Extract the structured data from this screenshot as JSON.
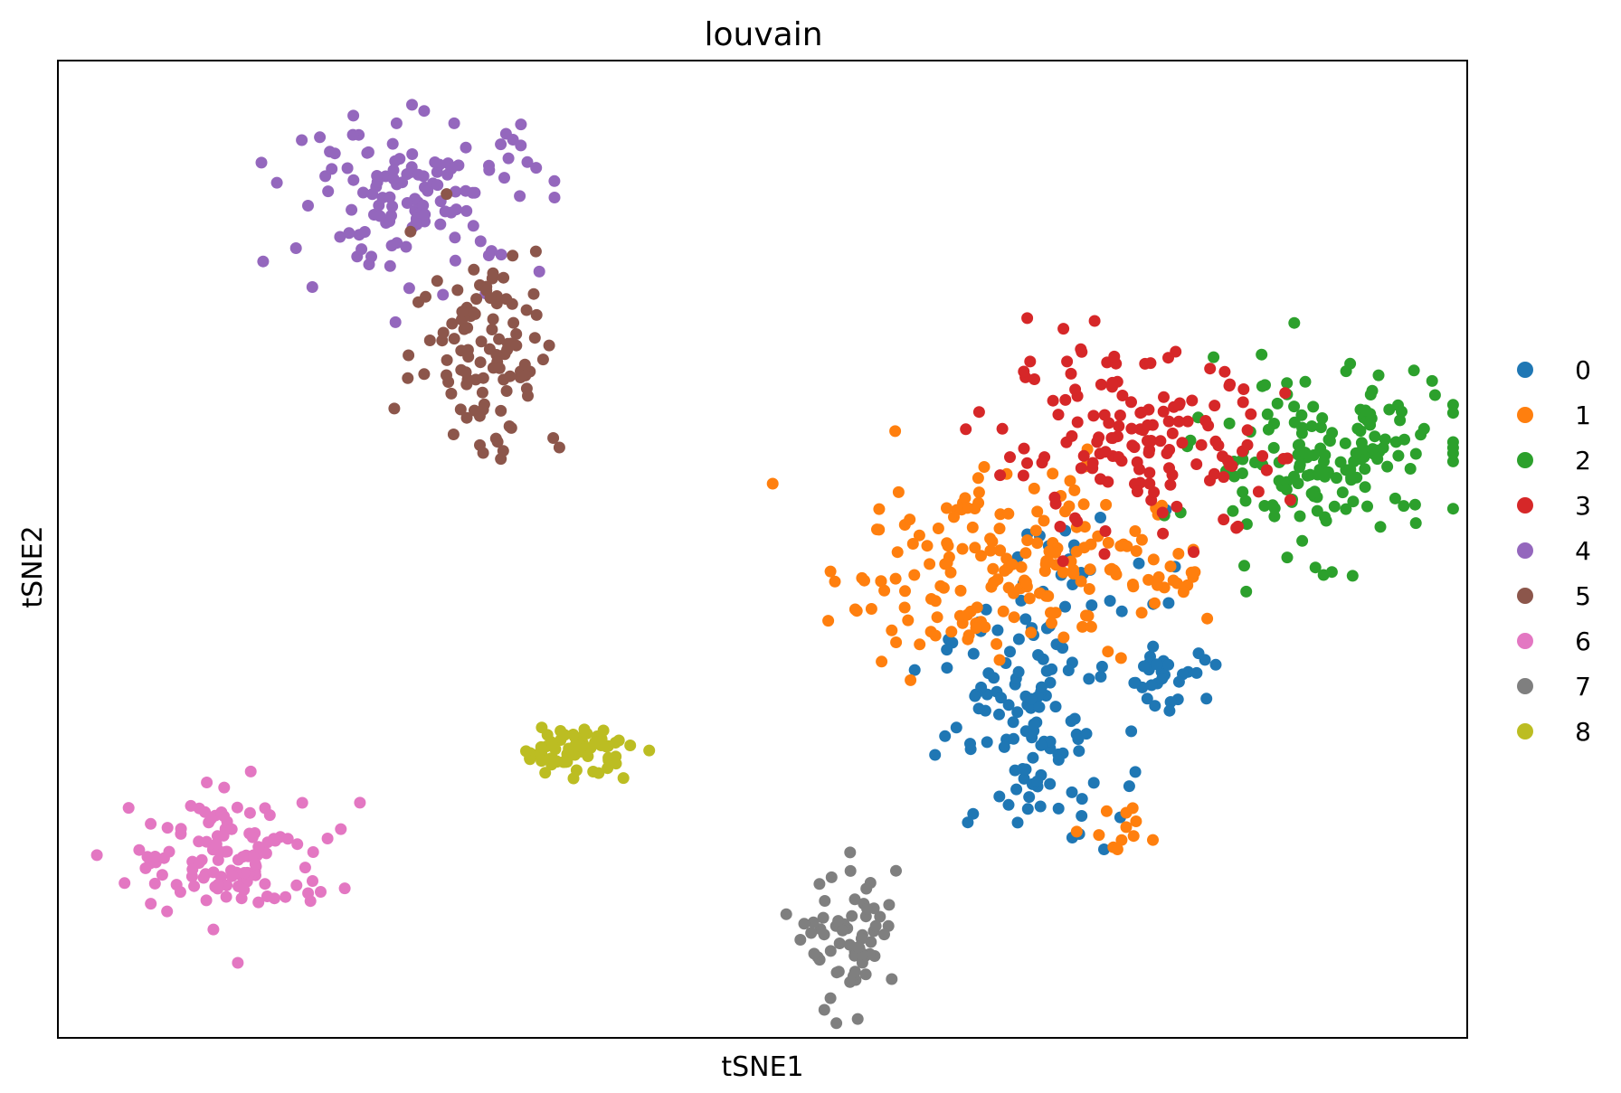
{
  "chart_data": {
    "type": "scatter",
    "title": "louvain",
    "xlabel": "tSNE1",
    "ylabel": "tSNE2",
    "xlim": [
      0,
      100
    ],
    "ylim": [
      0,
      100
    ],
    "grid": false,
    "legend": "right",
    "series": [
      {
        "name": "0",
        "color": "#1f77b4",
        "clusters": [
          {
            "cx": 69.0,
            "cy": 32.0,
            "sx": 3.2,
            "sy": 6.0,
            "n": 120
          },
          {
            "cx": 79.2,
            "cy": 37.2,
            "sx": 1.6,
            "sy": 1.8,
            "n": 30
          },
          {
            "cx": 73.0,
            "cy": 48.0,
            "sx": 4.0,
            "sy": 3.0,
            "n": 22
          }
        ]
      },
      {
        "name": "1",
        "color": "#ff7f0e",
        "clusters": [
          {
            "cx": 66.5,
            "cy": 48.5,
            "sx": 5.8,
            "sy": 5.0,
            "n": 175
          },
          {
            "cx": 77.5,
            "cy": 48.0,
            "sx": 3.0,
            "sy": 2.0,
            "n": 20
          },
          {
            "cx": 76.0,
            "cy": 21.0,
            "sx": 1.5,
            "sy": 1.5,
            "n": 12
          }
        ]
      },
      {
        "name": "2",
        "color": "#2ca02c",
        "clusters": [
          {
            "cx": 89.5,
            "cy": 59.5,
            "sx": 4.4,
            "sy": 4.6,
            "n": 165
          }
        ]
      },
      {
        "name": "3",
        "color": "#d62728",
        "clusters": [
          {
            "cx": 76.5,
            "cy": 60.5,
            "sx": 5.2,
            "sy": 4.6,
            "n": 150
          }
        ]
      },
      {
        "name": "4",
        "color": "#9467bd",
        "clusters": [
          {
            "cx": 25.5,
            "cy": 86.5,
            "sx": 4.6,
            "sy": 4.0,
            "n": 125
          }
        ]
      },
      {
        "name": "5",
        "color": "#8c564b",
        "clusters": [
          {
            "cx": 30.5,
            "cy": 70.5,
            "sx": 2.6,
            "sy": 5.6,
            "n": 105
          }
        ]
      },
      {
        "name": "6",
        "color": "#e377c2",
        "clusters": [
          {
            "cx": 12.5,
            "cy": 18.5,
            "sx": 3.6,
            "sy": 3.2,
            "n": 120
          }
        ]
      },
      {
        "name": "7",
        "color": "#7f7f7f",
        "clusters": [
          {
            "cx": 56.5,
            "cy": 9.5,
            "sx": 1.6,
            "sy": 3.6,
            "n": 65
          }
        ]
      },
      {
        "name": "8",
        "color": "#bcbd22",
        "clusters": [
          {
            "cx": 36.5,
            "cy": 29.5,
            "sx": 2.0,
            "sy": 1.2,
            "n": 70
          }
        ]
      }
    ]
  }
}
